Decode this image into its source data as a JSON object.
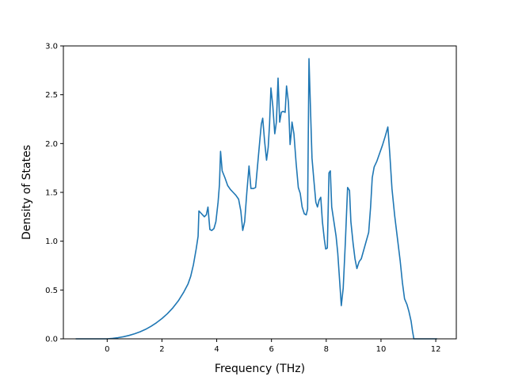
{
  "chart_data": {
    "type": "line",
    "title": "",
    "xlabel": "Frequency (THz)",
    "ylabel": "Density of States",
    "xlim": [
      -1.6,
      12.75
    ],
    "ylim": [
      0,
      3.0
    ],
    "xticks": [
      0,
      2,
      4,
      6,
      8,
      10,
      12
    ],
    "xtick_labels": [
      "0",
      "2",
      "4",
      "6",
      "8",
      "10",
      "12"
    ],
    "yticks": [
      0.0,
      0.5,
      1.0,
      1.5,
      2.0,
      2.5,
      3.0
    ],
    "ytick_labels": [
      "0.0",
      "0.5",
      "1.0",
      "1.5",
      "2.0",
      "2.5",
      "3.0"
    ],
    "grid": false,
    "color": "#1f77b4",
    "series": [
      {
        "points": [
          [
            -1.15,
            0.0
          ],
          [
            0.0,
            0.0
          ],
          [
            0.2,
            0.005
          ],
          [
            0.4,
            0.012
          ],
          [
            0.6,
            0.022
          ],
          [
            0.8,
            0.035
          ],
          [
            1.0,
            0.052
          ],
          [
            1.2,
            0.072
          ],
          [
            1.4,
            0.097
          ],
          [
            1.6,
            0.128
          ],
          [
            1.8,
            0.165
          ],
          [
            2.0,
            0.208
          ],
          [
            2.2,
            0.258
          ],
          [
            2.4,
            0.318
          ],
          [
            2.6,
            0.39
          ],
          [
            2.8,
            0.48
          ],
          [
            2.95,
            0.56
          ],
          [
            3.05,
            0.64
          ],
          [
            3.15,
            0.76
          ],
          [
            3.25,
            0.92
          ],
          [
            3.32,
            1.05
          ],
          [
            3.35,
            1.31
          ],
          [
            3.45,
            1.28
          ],
          [
            3.55,
            1.25
          ],
          [
            3.62,
            1.27
          ],
          [
            3.68,
            1.35
          ],
          [
            3.75,
            1.12
          ],
          [
            3.82,
            1.11
          ],
          [
            3.9,
            1.13
          ],
          [
            3.97,
            1.2
          ],
          [
            4.05,
            1.4
          ],
          [
            4.1,
            1.58
          ],
          [
            4.14,
            1.92
          ],
          [
            4.2,
            1.72
          ],
          [
            4.3,
            1.65
          ],
          [
            4.4,
            1.57
          ],
          [
            4.5,
            1.53
          ],
          [
            4.6,
            1.5
          ],
          [
            4.7,
            1.47
          ],
          [
            4.8,
            1.43
          ],
          [
            4.88,
            1.31
          ],
          [
            4.95,
            1.11
          ],
          [
            5.02,
            1.2
          ],
          [
            5.1,
            1.5
          ],
          [
            5.18,
            1.77
          ],
          [
            5.25,
            1.54
          ],
          [
            5.35,
            1.54
          ],
          [
            5.42,
            1.55
          ],
          [
            5.5,
            1.8
          ],
          [
            5.58,
            2.05
          ],
          [
            5.63,
            2.2
          ],
          [
            5.68,
            2.26
          ],
          [
            5.75,
            2.02
          ],
          [
            5.82,
            1.83
          ],
          [
            5.88,
            1.96
          ],
          [
            5.93,
            2.2
          ],
          [
            5.98,
            2.57
          ],
          [
            6.05,
            2.38
          ],
          [
            6.12,
            2.1
          ],
          [
            6.18,
            2.22
          ],
          [
            6.24,
            2.67
          ],
          [
            6.3,
            2.22
          ],
          [
            6.36,
            2.32
          ],
          [
            6.42,
            2.33
          ],
          [
            6.5,
            2.32
          ],
          [
            6.55,
            2.59
          ],
          [
            6.62,
            2.42
          ],
          [
            6.68,
            1.99
          ],
          [
            6.72,
            2.1
          ],
          [
            6.75,
            2.22
          ],
          [
            6.82,
            2.1
          ],
          [
            6.9,
            1.8
          ],
          [
            6.98,
            1.55
          ],
          [
            7.05,
            1.49
          ],
          [
            7.12,
            1.35
          ],
          [
            7.2,
            1.28
          ],
          [
            7.27,
            1.27
          ],
          [
            7.32,
            1.33
          ],
          [
            7.37,
            2.87
          ],
          [
            7.42,
            2.4
          ],
          [
            7.48,
            1.85
          ],
          [
            7.55,
            1.62
          ],
          [
            7.62,
            1.4
          ],
          [
            7.68,
            1.35
          ],
          [
            7.74,
            1.42
          ],
          [
            7.8,
            1.45
          ],
          [
            7.86,
            1.2
          ],
          [
            7.93,
            1.02
          ],
          [
            7.98,
            0.92
          ],
          [
            8.04,
            0.93
          ],
          [
            8.1,
            1.7
          ],
          [
            8.15,
            1.72
          ],
          [
            8.2,
            1.35
          ],
          [
            8.28,
            1.2
          ],
          [
            8.36,
            1.05
          ],
          [
            8.42,
            0.88
          ],
          [
            8.5,
            0.55
          ],
          [
            8.55,
            0.34
          ],
          [
            8.62,
            0.52
          ],
          [
            8.7,
            1.0
          ],
          [
            8.78,
            1.55
          ],
          [
            8.85,
            1.52
          ],
          [
            8.9,
            1.2
          ],
          [
            8.98,
            0.98
          ],
          [
            9.05,
            0.82
          ],
          [
            9.12,
            0.72
          ],
          [
            9.2,
            0.79
          ],
          [
            9.28,
            0.82
          ],
          [
            9.36,
            0.9
          ],
          [
            9.44,
            0.98
          ],
          [
            9.55,
            1.09
          ],
          [
            9.62,
            1.35
          ],
          [
            9.68,
            1.65
          ],
          [
            9.75,
            1.76
          ],
          [
            9.85,
            1.82
          ],
          [
            9.95,
            1.9
          ],
          [
            10.05,
            1.98
          ],
          [
            10.15,
            2.07
          ],
          [
            10.25,
            2.17
          ],
          [
            10.32,
            1.9
          ],
          [
            10.4,
            1.54
          ],
          [
            10.5,
            1.26
          ],
          [
            10.6,
            1.03
          ],
          [
            10.7,
            0.8
          ],
          [
            10.78,
            0.58
          ],
          [
            10.86,
            0.41
          ],
          [
            10.95,
            0.35
          ],
          [
            11.02,
            0.28
          ],
          [
            11.1,
            0.18
          ],
          [
            11.15,
            0.08
          ],
          [
            11.2,
            0.0
          ],
          [
            12.05,
            0.0
          ]
        ]
      }
    ]
  }
}
